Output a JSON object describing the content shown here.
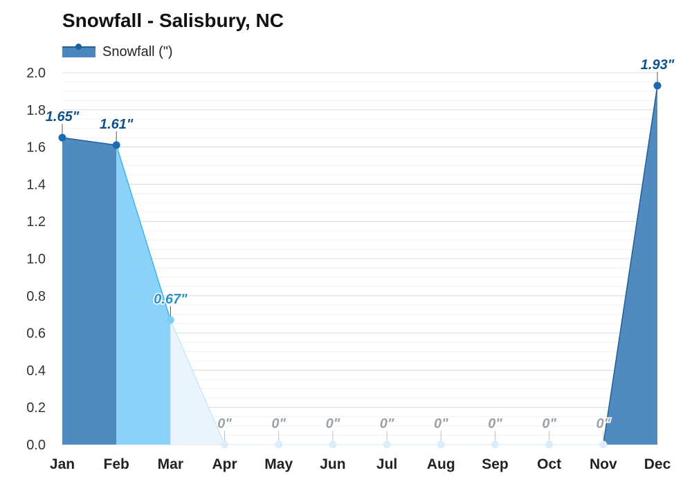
{
  "chart_data": {
    "type": "area",
    "title": "Snowfall - Salisbury, NC",
    "categories": [
      "Jan",
      "Feb",
      "Mar",
      "Apr",
      "May",
      "Jun",
      "Jul",
      "Aug",
      "Sep",
      "Oct",
      "Nov",
      "Dec"
    ],
    "series": [
      {
        "name": "Snowfall (\")",
        "values": [
          1.65,
          1.61,
          0.67,
          0,
          0,
          0,
          0,
          0,
          0,
          0,
          0,
          1.93
        ],
        "labels": [
          "1.65\"",
          "1.61\"",
          "0.67\"",
          "0\"",
          "0\"",
          "0\"",
          "0\"",
          "0\"",
          "0\"",
          "0\"",
          "0\"",
          "1.93\""
        ]
      }
    ],
    "yticks": [
      "0.0",
      "0.2",
      "0.4",
      "0.6",
      "0.8",
      "1.0",
      "1.2",
      "1.4",
      "1.6",
      "1.8",
      "2.0"
    ],
    "ylim": [
      0,
      2.0
    ],
    "grid": true,
    "legend_position": "top-left",
    "colors": {
      "heavy": "#4a86bd",
      "heavy_line": "#1f5f99",
      "medium": "#86d1f7",
      "medium_line": "#3db5ec",
      "light": "#e8f4fd",
      "zero_dot": "#dcecf8",
      "zero_label": "#9aa3aa",
      "medium_label": "#2f8fc4",
      "heavy_label": "#0f5088"
    }
  }
}
